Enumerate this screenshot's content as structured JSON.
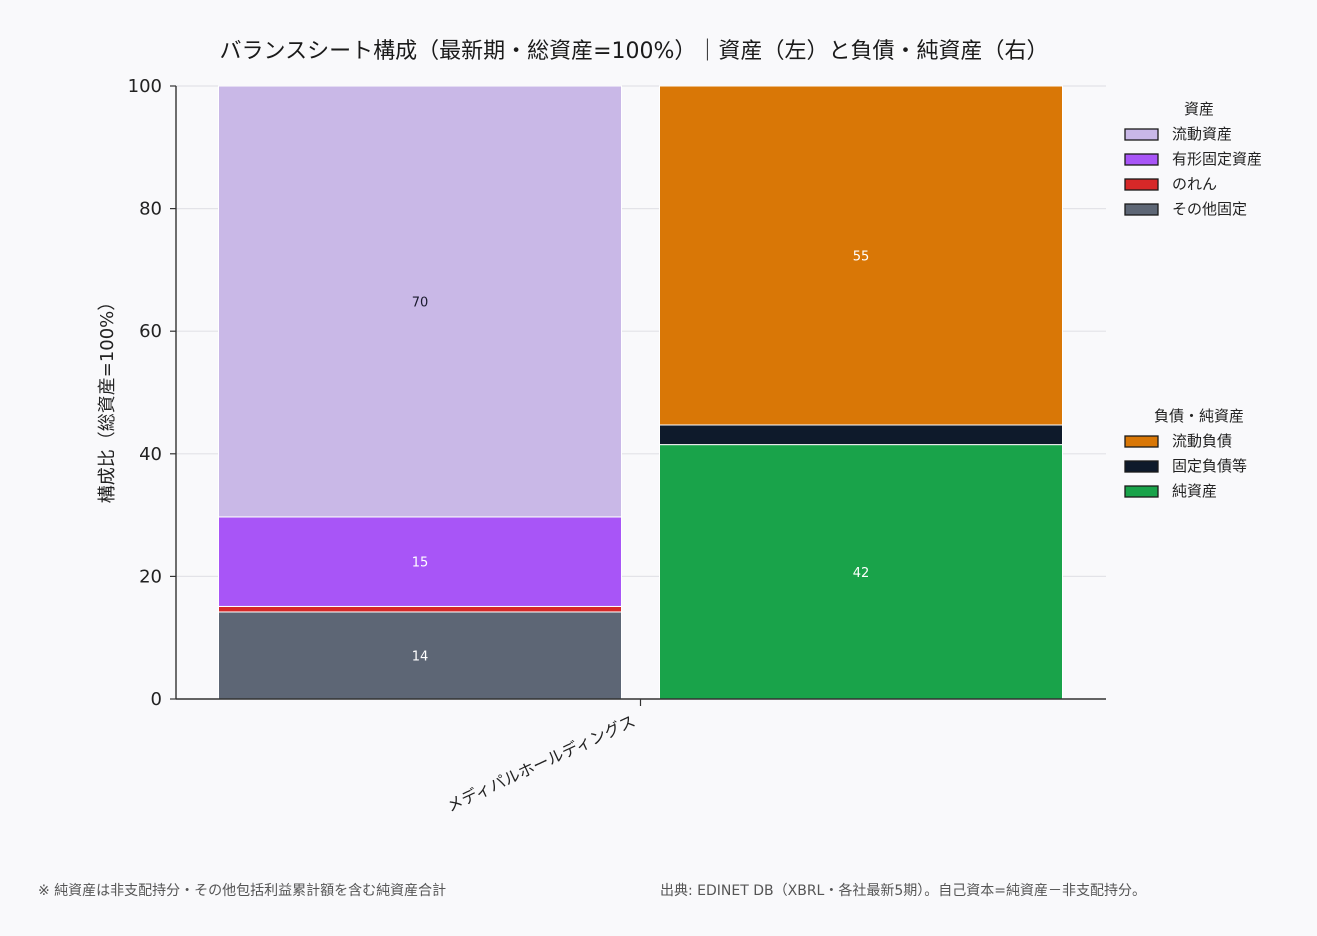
{
  "chart_data": {
    "type": "bar",
    "title": "バランスシート構成（最新期・総資産=100%）｜資産（左）と負債・純資産（右）",
    "ylabel": "構成比（総資産=100%）",
    "xlabel": "",
    "ylim": [
      0,
      100
    ],
    "yticks": [
      "0",
      "20",
      "40",
      "60",
      "80",
      "100"
    ],
    "grid": "y",
    "categories": [
      "メディパルホールディングス"
    ],
    "stacks": [
      {
        "side": "資産",
        "series": [
          {
            "name": "その他固定",
            "value": 14.2,
            "label": "14",
            "color": "#5d6675",
            "label_color": "#ffffff"
          },
          {
            "name": "のれん",
            "value": 0.9,
            "label": "",
            "color": "#d62828",
            "label_color": "#ffffff"
          },
          {
            "name": "有形固定資産",
            "value": 14.6,
            "label": "15",
            "color": "#a855f7",
            "label_color": "#ffffff"
          },
          {
            "name": "流動資産",
            "value": 70.3,
            "label": "70",
            "color": "#c9b8e7",
            "label_color": "#1a1a2e"
          }
        ]
      },
      {
        "side": "負債・純資産",
        "series": [
          {
            "name": "純資産",
            "value": 41.5,
            "label": "42",
            "color": "#19a34a",
            "label_color": "#ffffff"
          },
          {
            "name": "固定負債等",
            "value": 3.2,
            "label": "",
            "color": "#0e1a2b",
            "label_color": "#ffffff"
          },
          {
            "name": "流動負債",
            "value": 55.3,
            "label": "55",
            "color": "#d97706",
            "label_color": "#ffffff"
          }
        ]
      }
    ],
    "legend": {
      "placement": "right",
      "groups": [
        {
          "title": "資産",
          "items": [
            {
              "name": "流動資産",
              "color": "#c9b8e7"
            },
            {
              "name": "有形固定資産",
              "color": "#a855f7"
            },
            {
              "name": "のれん",
              "color": "#d62828"
            },
            {
              "name": "その他固定",
              "color": "#5d6675"
            }
          ]
        },
        {
          "title": "負債・純資産",
          "items": [
            {
              "name": "流動負債",
              "color": "#d97706"
            },
            {
              "name": "固定負債等",
              "color": "#0e1a2b"
            },
            {
              "name": "純資産",
              "color": "#19a34a"
            }
          ]
        }
      ]
    }
  },
  "footnotes": {
    "left": "※ 純資産は非支配持分・その他包括利益累計額を含む純資産合計",
    "right": "出典: EDINET DB（XBRL・各社最新5期）。自己資本=純資産－非支配持分。"
  }
}
